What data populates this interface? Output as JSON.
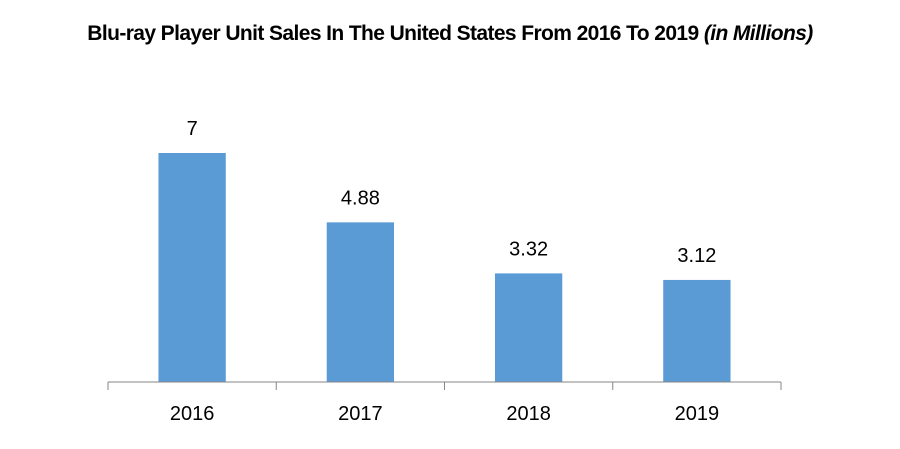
{
  "chart_data": {
    "type": "bar",
    "title": "Blu-ray Player Unit Sales In The United States From 2016 To 2019",
    "title_suffix": "(in Millions)",
    "categories": [
      "2016",
      "2017",
      "2018",
      "2019"
    ],
    "values": [
      7,
      4.88,
      3.32,
      3.12
    ],
    "data_labels": [
      "7",
      "4.88",
      "3.32",
      "3.12"
    ],
    "xlabel": "",
    "ylabel": "",
    "ylim": [
      0,
      7
    ],
    "grid": false,
    "legend": "none",
    "bar_color": "#5B9BD5",
    "axis_color": "#868686"
  }
}
